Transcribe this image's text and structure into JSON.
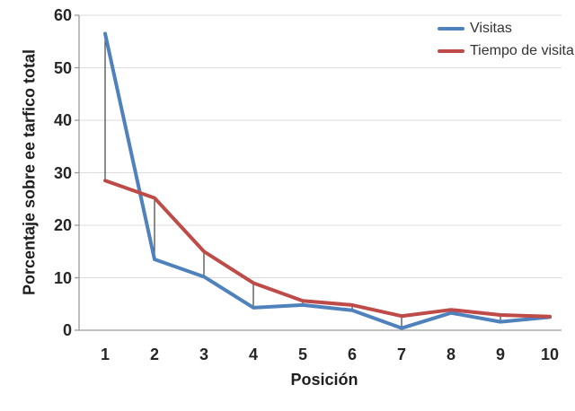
{
  "chart_data": {
    "type": "line",
    "title": "",
    "xlabel": "Posición",
    "ylabel": "Porcentaje sobre ee tarfico total",
    "x": [
      "1",
      "2",
      "3",
      "4",
      "5",
      "6",
      "7",
      "8",
      "9",
      "10"
    ],
    "series": [
      {
        "name": "Visitas",
        "color": "#4F81BD",
        "values": [
          56.5,
          13.5,
          10.2,
          4.3,
          4.8,
          3.8,
          0.4,
          3.3,
          1.6,
          2.5
        ]
      },
      {
        "name": "Tiempo de visita",
        "color": "#BE4B48",
        "values": [
          28.5,
          25.2,
          15.0,
          9.0,
          5.6,
          4.8,
          2.7,
          3.9,
          2.9,
          2.6
        ]
      }
    ],
    "ylim": [
      0,
      60
    ],
    "yticks": [
      0,
      10,
      20,
      30,
      40,
      50,
      60
    ],
    "grid": "horizontal",
    "has_highlow_connector_lines": true,
    "legend_position": "top-right",
    "colors": {
      "grid": "#DCDCDC",
      "axis": "#9B9B9B",
      "connector": "#404040",
      "tick_text": "#262626"
    }
  }
}
